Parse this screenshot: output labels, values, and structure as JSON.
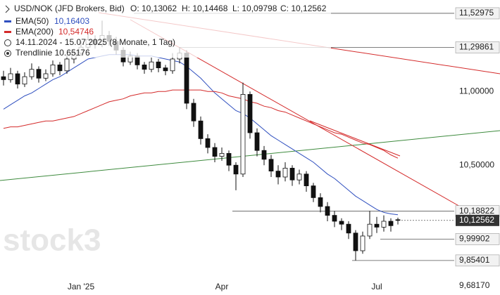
{
  "chart_data": {
    "type": "candlestick",
    "header": {
      "symbol": "USD/NOK (JFD Brokers, Bid)",
      "open": "O: 10,13062",
      "high": "H: 10,14468",
      "low": "L: 10,09798",
      "close": "C: 10,12562",
      "range": "14.11.2024 - 15.07.2025 (8 Monate, 1 Tag)",
      "trendline": "Trendlinie 10.65176"
    },
    "watermark": "stock3",
    "categories": [
      null,
      null,
      null,
      null,
      null,
      null,
      null,
      null,
      null,
      null,
      null,
      "Jan '25",
      null,
      null,
      null,
      null,
      null,
      null,
      null,
      null,
      null,
      null,
      null,
      null,
      null,
      null,
      null,
      null,
      null,
      null,
      null,
      "Apr",
      null,
      null,
      null,
      null,
      null,
      null,
      null,
      null,
      null,
      null,
      null,
      null,
      null,
      null,
      null,
      null,
      null,
      null,
      null,
      null,
      null,
      "Jul",
      null,
      null,
      null
    ],
    "open": [
      11.1,
      11.08,
      11.12,
      11.05,
      11.1,
      11.15,
      11.09,
      11.12,
      11.18,
      11.14,
      11.22,
      11.26,
      11.3,
      11.35,
      11.32,
      11.38,
      11.34,
      11.28,
      11.2,
      11.24,
      11.18,
      11.15,
      11.2,
      11.16,
      11.14,
      11.22,
      11.26,
      10.92,
      10.8,
      10.68,
      10.62,
      10.56,
      10.58,
      10.5,
      10.44,
      10.98,
      10.72,
      10.6,
      10.54,
      10.46,
      10.42,
      10.48,
      10.4,
      10.44,
      10.36,
      10.28,
      10.22,
      10.16,
      10.12,
      10.1,
      10.04,
      9.92,
      10.02,
      10.1,
      10.08,
      10.12,
      10.13062
    ],
    "high": [
      11.14,
      11.16,
      11.14,
      11.13,
      11.19,
      11.17,
      11.15,
      11.21,
      11.2,
      11.25,
      11.29,
      11.34,
      11.4,
      11.38,
      11.48,
      11.41,
      11.37,
      11.3,
      11.27,
      11.26,
      11.2,
      11.23,
      11.22,
      11.18,
      11.26,
      11.3,
      11.28,
      10.95,
      10.83,
      10.71,
      10.65,
      10.62,
      10.6,
      10.52,
      11.06,
      11.0,
      10.75,
      10.63,
      10.57,
      10.5,
      10.52,
      10.5,
      10.47,
      10.46,
      10.38,
      10.31,
      10.25,
      10.19,
      10.14,
      10.12,
      10.06,
      10.05,
      10.19,
      10.15,
      10.16,
      10.14,
      10.14468
    ],
    "low": [
      11.04,
      11.06,
      11.02,
      11.03,
      11.08,
      11.06,
      11.07,
      11.1,
      11.11,
      11.12,
      11.19,
      11.24,
      11.28,
      11.29,
      11.3,
      11.31,
      11.25,
      11.17,
      11.18,
      11.15,
      11.12,
      11.13,
      11.13,
      11.11,
      11.12,
      11.19,
      10.88,
      10.76,
      10.64,
      10.58,
      10.52,
      10.53,
      10.46,
      10.33,
      10.42,
      10.68,
      10.56,
      10.5,
      10.42,
      10.37,
      10.39,
      10.36,
      10.37,
      10.32,
      10.25,
      10.18,
      10.12,
      10.08,
      10.06,
      10.0,
      9.854,
      9.9,
      10.0,
      10.04,
      10.05,
      10.05,
      10.09798
    ],
    "close": [
      11.08,
      11.12,
      11.05,
      11.1,
      11.15,
      11.09,
      11.12,
      11.18,
      11.14,
      11.22,
      11.26,
      11.3,
      11.35,
      11.32,
      11.38,
      11.34,
      11.28,
      11.2,
      11.24,
      11.18,
      11.15,
      11.2,
      11.16,
      11.14,
      11.22,
      11.26,
      10.92,
      10.8,
      10.68,
      10.62,
      10.56,
      10.58,
      10.5,
      10.44,
      10.98,
      10.72,
      10.6,
      10.54,
      10.46,
      10.42,
      10.48,
      10.4,
      10.44,
      10.36,
      10.28,
      10.22,
      10.16,
      10.12,
      10.1,
      10.04,
      9.92,
      10.02,
      10.1,
      10.08,
      10.12,
      10.09,
      10.12562
    ],
    "series": [
      {
        "name": "EMA(50)",
        "value_label": "10,16403",
        "color": "#2f4fbf",
        "values": [
          10.88,
          10.91,
          10.94,
          10.97,
          10.99,
          11.02,
          11.05,
          11.08,
          11.1,
          11.13,
          11.16,
          11.19,
          11.22,
          11.23,
          11.24,
          11.25,
          11.25,
          11.25,
          11.25,
          11.24,
          11.24,
          11.24,
          11.23,
          11.22,
          11.21,
          11.2,
          11.17,
          11.13,
          11.09,
          11.04,
          10.99,
          10.95,
          10.91,
          10.87,
          10.85,
          10.82,
          10.78,
          10.74,
          10.7,
          10.67,
          10.64,
          10.61,
          10.58,
          10.55,
          10.52,
          10.48,
          10.44,
          10.41,
          10.37,
          10.33,
          10.29,
          10.26,
          10.23,
          10.2,
          10.18,
          10.17,
          10.16403
        ]
      },
      {
        "name": "EMA(200)",
        "value_label": "10,54746",
        "color": "#d42a2a",
        "values": [
          10.75,
          10.76,
          10.76,
          10.77,
          10.78,
          10.79,
          10.8,
          10.8,
          10.81,
          10.82,
          10.83,
          10.85,
          10.87,
          10.89,
          10.91,
          10.93,
          10.94,
          10.95,
          10.97,
          10.98,
          10.99,
          10.99,
          11.0,
          11.0,
          11.01,
          11.01,
          11.01,
          11.01,
          11.01,
          11.0,
          11.0,
          10.99,
          10.97,
          10.96,
          10.95,
          10.93,
          10.92,
          10.9,
          10.89,
          10.87,
          10.86,
          10.84,
          10.82,
          10.8,
          10.78,
          10.76,
          10.74,
          10.72,
          10.71,
          10.69,
          10.67,
          10.65,
          10.64,
          10.62,
          10.6,
          10.57,
          10.54746
        ]
      }
    ],
    "ylim": [
      9.62,
      11.62
    ],
    "yticks": [
      {
        "value": 11.52975,
        "label": "11,52975"
      },
      {
        "value": 11.29861,
        "label": "11,29861"
      },
      {
        "value": 11.0,
        "label": "11,00000"
      },
      {
        "value": 10.5,
        "label": "10,50000"
      },
      {
        "value": 10.18822,
        "label": "10,18822"
      },
      {
        "value": 9.99902,
        "label": "9,99902"
      },
      {
        "value": 9.85401,
        "label": "9,85401"
      },
      {
        "value": 9.6817,
        "label": "9,68170"
      }
    ],
    "last_price": {
      "value": 10.12562,
      "label": "10,12562"
    }
  }
}
